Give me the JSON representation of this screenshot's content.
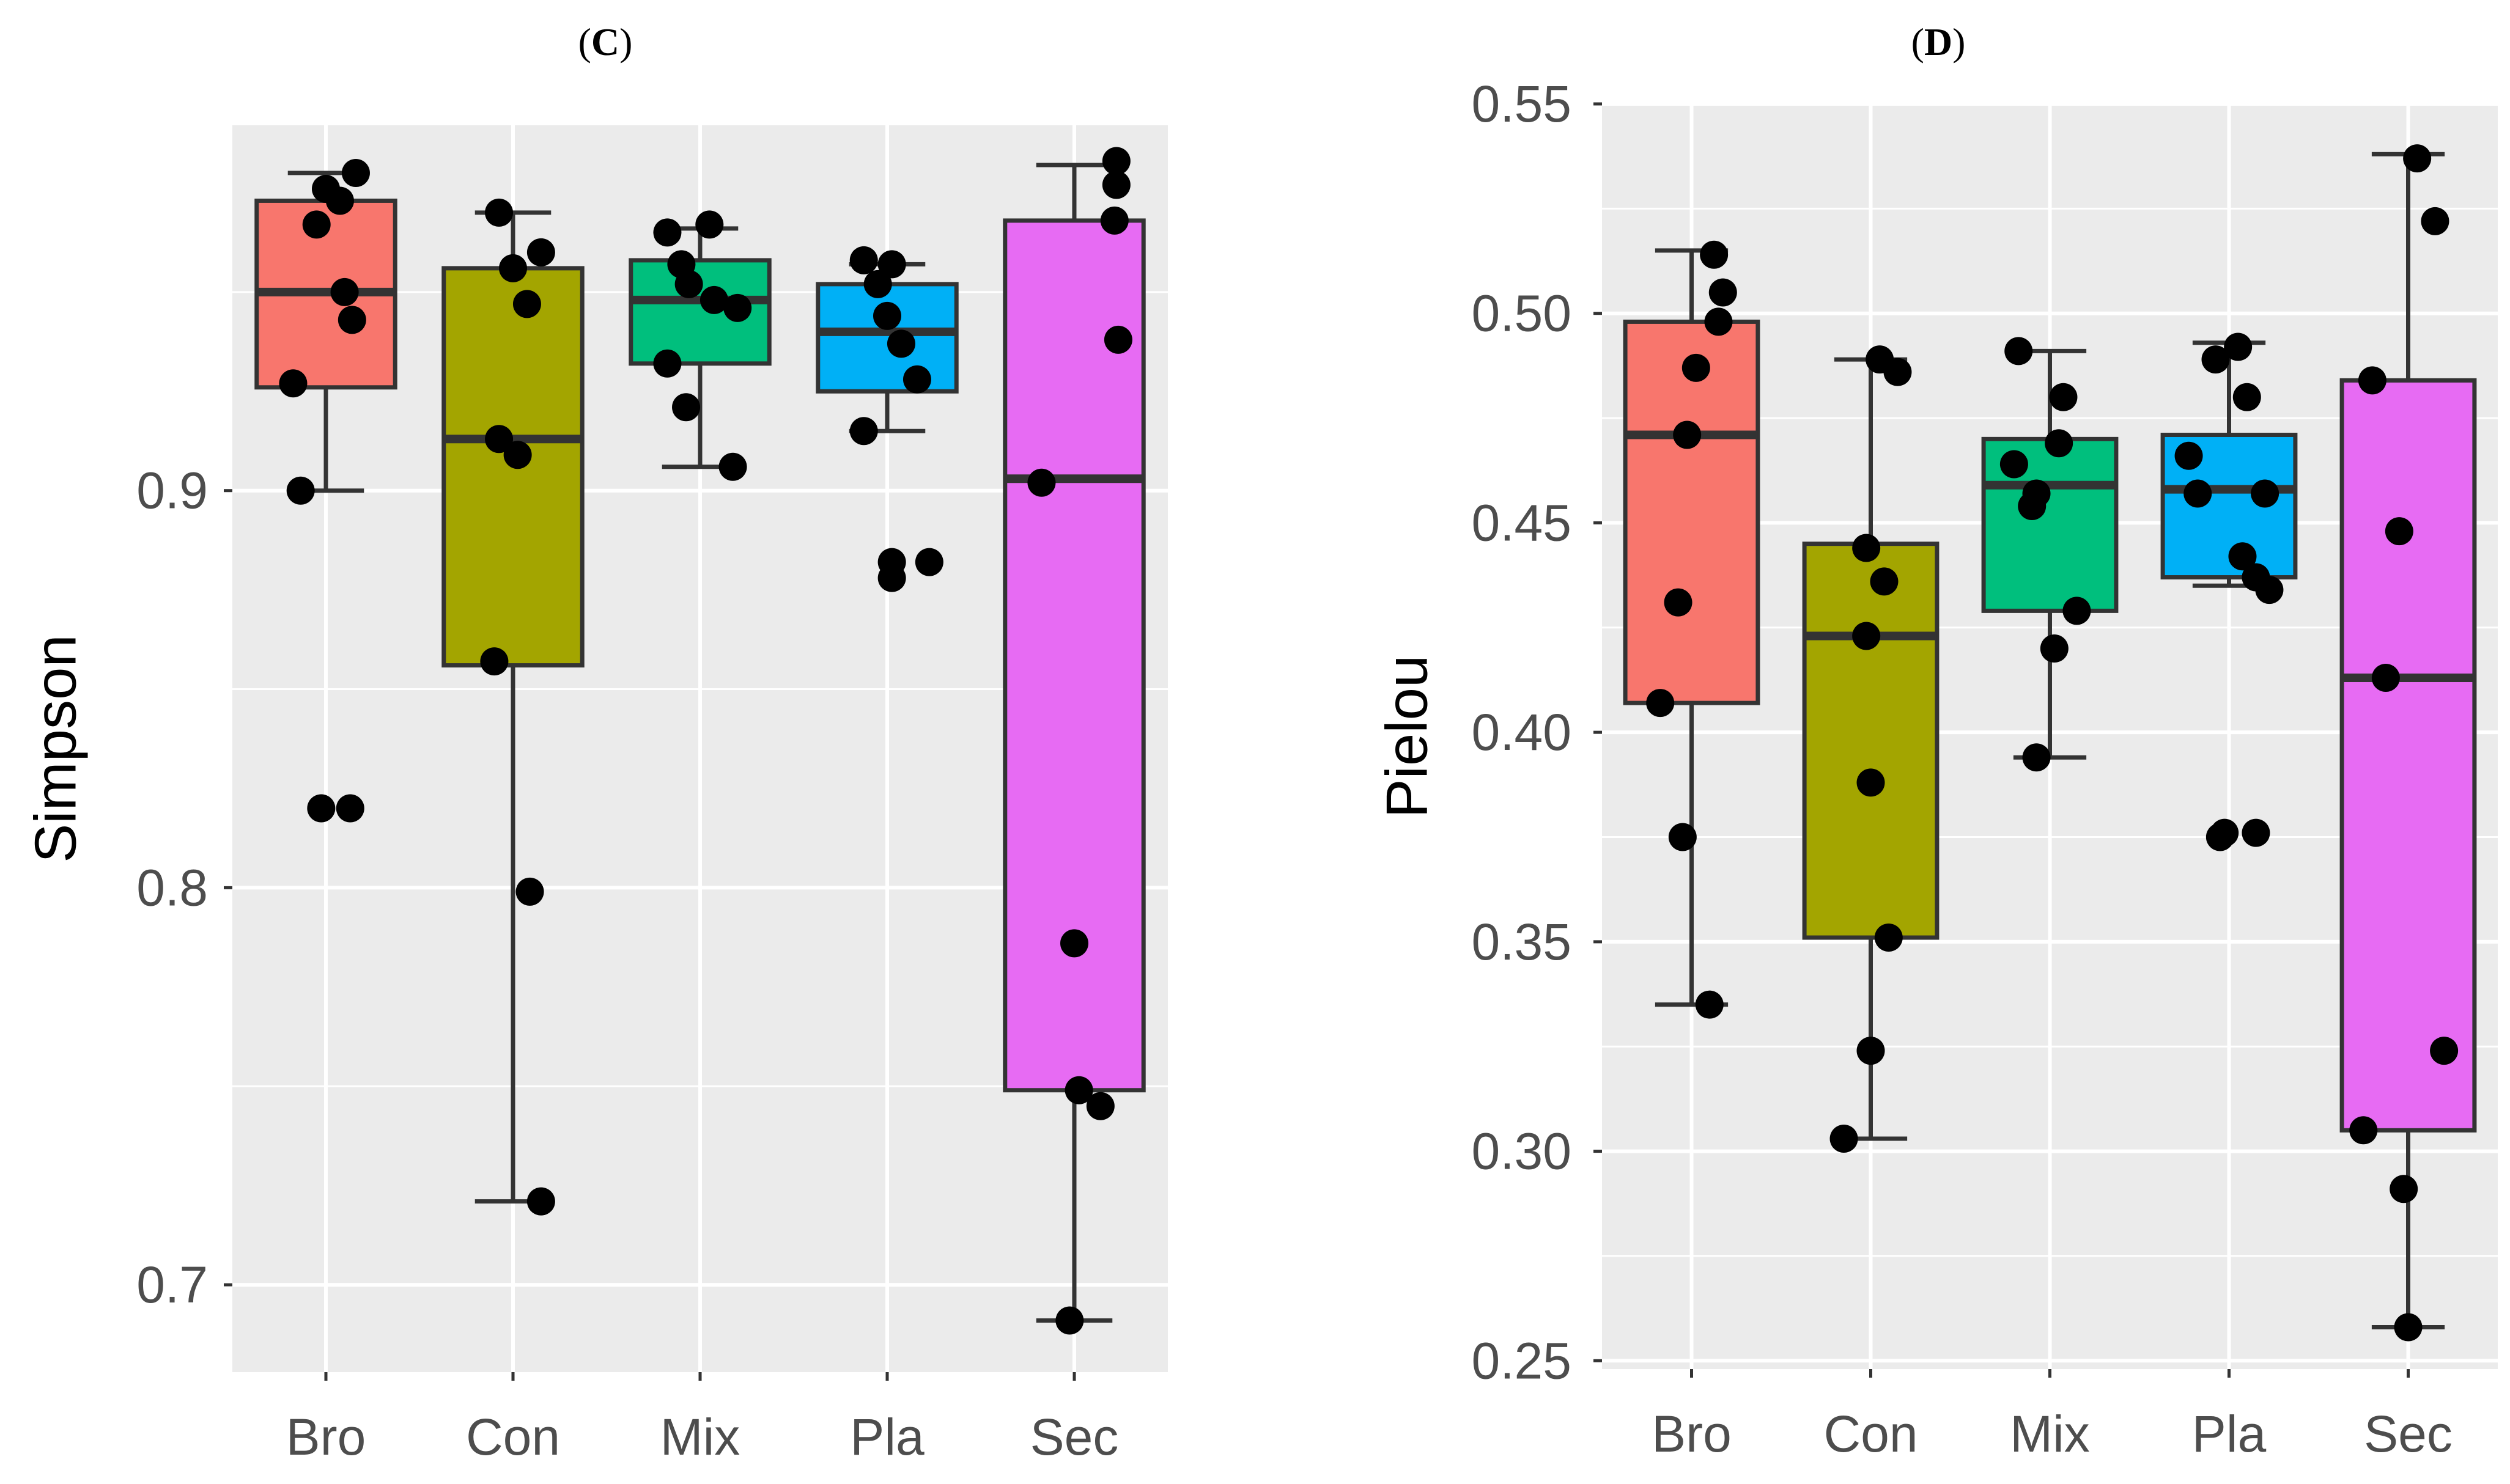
{
  "chart_data": [
    {
      "panel": "C",
      "title_open": "(",
      "title_letter": "C",
      "title_close": ")",
      "type": "box",
      "ylabel": "Simpson",
      "ylim": [
        0.678,
        0.992
      ],
      "yticks": [
        0.7,
        0.8,
        0.9
      ],
      "ytick_labels": [
        "0.7",
        "0.8",
        "0.9"
      ],
      "categories": [
        "Bro",
        "Con",
        "Mix",
        "Pla",
        "Sec"
      ],
      "colors": [
        "#f8766d",
        "#a3a500",
        "#00bf7d",
        "#00b0f6",
        "#e76bf3"
      ],
      "boxes": [
        {
          "q1": 0.926,
          "median": 0.95,
          "q3": 0.973,
          "whisker_low": 0.9,
          "whisker_high": 0.98
        },
        {
          "q1": 0.856,
          "median": 0.913,
          "q3": 0.956,
          "whisker_low": 0.721,
          "whisker_high": 0.97
        },
        {
          "q1": 0.932,
          "median": 0.948,
          "q3": 0.958,
          "whisker_low": 0.906,
          "whisker_high": 0.966
        },
        {
          "q1": 0.925,
          "median": 0.94,
          "q3": 0.952,
          "whisker_low": 0.915,
          "whisker_high": 0.957
        },
        {
          "q1": 0.749,
          "median": 0.903,
          "q3": 0.968,
          "whisker_low": 0.691,
          "whisker_high": 0.982
        }
      ],
      "points": [
        [
          [
            -0.35,
            0.927
          ],
          [
            -0.27,
            0.9
          ],
          [
            -0.1,
            0.967
          ],
          [
            0.0,
            0.976
          ],
          [
            0.15,
            0.973
          ],
          [
            0.2,
            0.95
          ],
          [
            0.28,
            0.943
          ],
          [
            0.32,
            0.98
          ],
          [
            -0.05,
            0.82
          ],
          [
            0.26,
            0.82
          ]
        ],
        [
          [
            -0.15,
            0.97
          ],
          [
            0.0,
            0.956
          ],
          [
            0.15,
            0.947
          ],
          [
            0.3,
            0.96
          ],
          [
            -0.15,
            0.913
          ],
          [
            0.05,
            0.909
          ],
          [
            -0.2,
            0.857
          ],
          [
            0.18,
            0.799
          ],
          [
            0.3,
            0.721
          ]
        ],
        [
          [
            -0.35,
            0.932
          ],
          [
            -0.35,
            0.965
          ],
          [
            -0.2,
            0.957
          ],
          [
            -0.12,
            0.952
          ],
          [
            0.1,
            0.967
          ],
          [
            0.15,
            0.948
          ],
          [
            0.4,
            0.946
          ],
          [
            -0.15,
            0.921
          ],
          [
            0.35,
            0.906
          ]
        ],
        [
          [
            -0.25,
            0.958
          ],
          [
            -0.1,
            0.952
          ],
          [
            0.05,
            0.957
          ],
          [
            0.0,
            0.944
          ],
          [
            0.15,
            0.937
          ],
          [
            0.32,
            0.928
          ],
          [
            -0.25,
            0.915
          ],
          [
            0.05,
            0.882
          ],
          [
            0.05,
            0.878
          ],
          [
            0.45,
            0.882
          ]
        ],
        [
          [
            0.45,
            0.983
          ],
          [
            0.45,
            0.977
          ],
          [
            0.43,
            0.968
          ],
          [
            0.47,
            0.938
          ],
          [
            -0.35,
            0.902
          ],
          [
            0.0,
            0.786
          ],
          [
            0.05,
            0.749
          ],
          [
            0.28,
            0.745
          ],
          [
            -0.05,
            0.691
          ]
        ]
      ]
    },
    {
      "panel": "D",
      "title_open": "(",
      "title_letter": "D",
      "title_close": ")",
      "type": "box",
      "ylabel": "Pielou",
      "ylim": [
        0.248,
        0.55
      ],
      "yticks": [
        0.25,
        0.3,
        0.35,
        0.4,
        0.45,
        0.5,
        0.55
      ],
      "ytick_labels": [
        "0.25",
        "0.30",
        "0.35",
        "0.40",
        "0.45",
        "0.50",
        "0.55"
      ],
      "categories": [
        "Bro",
        "Con",
        "Mix",
        "Pla",
        "Sec"
      ],
      "colors": [
        "#f8766d",
        "#a3a500",
        "#00bf7d",
        "#00b0f6",
        "#e76bf3"
      ],
      "boxes": [
        {
          "q1": 0.407,
          "median": 0.471,
          "q3": 0.498,
          "whisker_low": 0.335,
          "whisker_high": 0.515
        },
        {
          "q1": 0.351,
          "median": 0.423,
          "q3": 0.445,
          "whisker_low": 0.303,
          "whisker_high": 0.489
        },
        {
          "q1": 0.429,
          "median": 0.459,
          "q3": 0.47,
          "whisker_low": 0.394,
          "whisker_high": 0.491
        },
        {
          "q1": 0.437,
          "median": 0.458,
          "q3": 0.471,
          "whisker_low": 0.435,
          "whisker_high": 0.493
        },
        {
          "q1": 0.305,
          "median": 0.413,
          "q3": 0.484,
          "whisker_low": 0.258,
          "whisker_high": 0.538
        }
      ],
      "points": [
        [
          [
            -0.35,
            0.407
          ],
          [
            -0.15,
            0.431
          ],
          [
            -0.05,
            0.471
          ],
          [
            0.05,
            0.487
          ],
          [
            0.25,
            0.514
          ],
          [
            0.3,
            0.498
          ],
          [
            0.35,
            0.505
          ],
          [
            -0.1,
            0.375
          ],
          [
            0.2,
            0.335
          ]
        ],
        [
          [
            -0.3,
            0.303
          ],
          [
            -0.05,
            0.423
          ],
          [
            -0.05,
            0.444
          ],
          [
            0.1,
            0.489
          ],
          [
            0.3,
            0.486
          ],
          [
            0.15,
            0.436
          ],
          [
            0.0,
            0.388
          ],
          [
            0.2,
            0.351
          ],
          [
            0.0,
            0.324
          ]
        ],
        [
          [
            -0.35,
            0.491
          ],
          [
            -0.4,
            0.464
          ],
          [
            -0.2,
            0.454
          ],
          [
            -0.15,
            0.457
          ],
          [
            0.1,
            0.469
          ],
          [
            0.15,
            0.48
          ],
          [
            0.05,
            0.42
          ],
          [
            0.3,
            0.429
          ],
          [
            -0.15,
            0.394
          ]
        ],
        [
          [
            -0.45,
            0.466
          ],
          [
            -0.15,
            0.489
          ],
          [
            0.1,
            0.492
          ],
          [
            -0.35,
            0.457
          ],
          [
            0.2,
            0.48
          ],
          [
            0.15,
            0.442
          ],
          [
            0.4,
            0.457
          ],
          [
            0.3,
            0.437
          ],
          [
            0.45,
            0.434
          ],
          [
            -0.1,
            0.375
          ],
          [
            -0.05,
            0.376
          ],
          [
            0.3,
            0.376
          ]
        ],
        [
          [
            0.1,
            0.537
          ],
          [
            0.3,
            0.522
          ],
          [
            -0.4,
            0.484
          ],
          [
            -0.1,
            0.448
          ],
          [
            -0.25,
            0.413
          ],
          [
            -0.5,
            0.305
          ],
          [
            -0.05,
            0.291
          ],
          [
            0.4,
            0.324
          ],
          [
            0.0,
            0.258
          ]
        ]
      ]
    }
  ]
}
